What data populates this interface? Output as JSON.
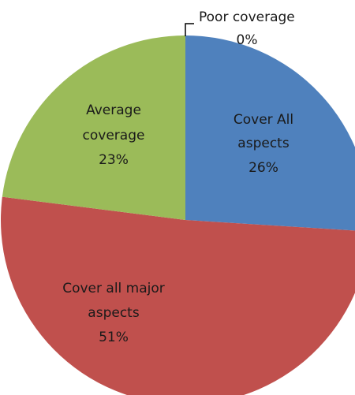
{
  "chart_data": {
    "type": "pie",
    "title": "",
    "slices": [
      {
        "line1": "Poor coverage",
        "line2": "",
        "pct_label": "0%",
        "value": 0,
        "color": "#4f81bd"
      },
      {
        "line1": "Cover All",
        "line2": "aspects",
        "pct_label": "26%",
        "value": 26,
        "color": "#4f81bd"
      },
      {
        "line1": "Cover all major",
        "line2": "aspects",
        "pct_label": "51%",
        "value": 51,
        "color": "#c0504d"
      },
      {
        "line1": "Average",
        "line2": "coverage",
        "pct_label": "23%",
        "value": 23,
        "color": "#9bbb59"
      }
    ],
    "start_angle_deg": 0,
    "direction": "clockwise"
  }
}
